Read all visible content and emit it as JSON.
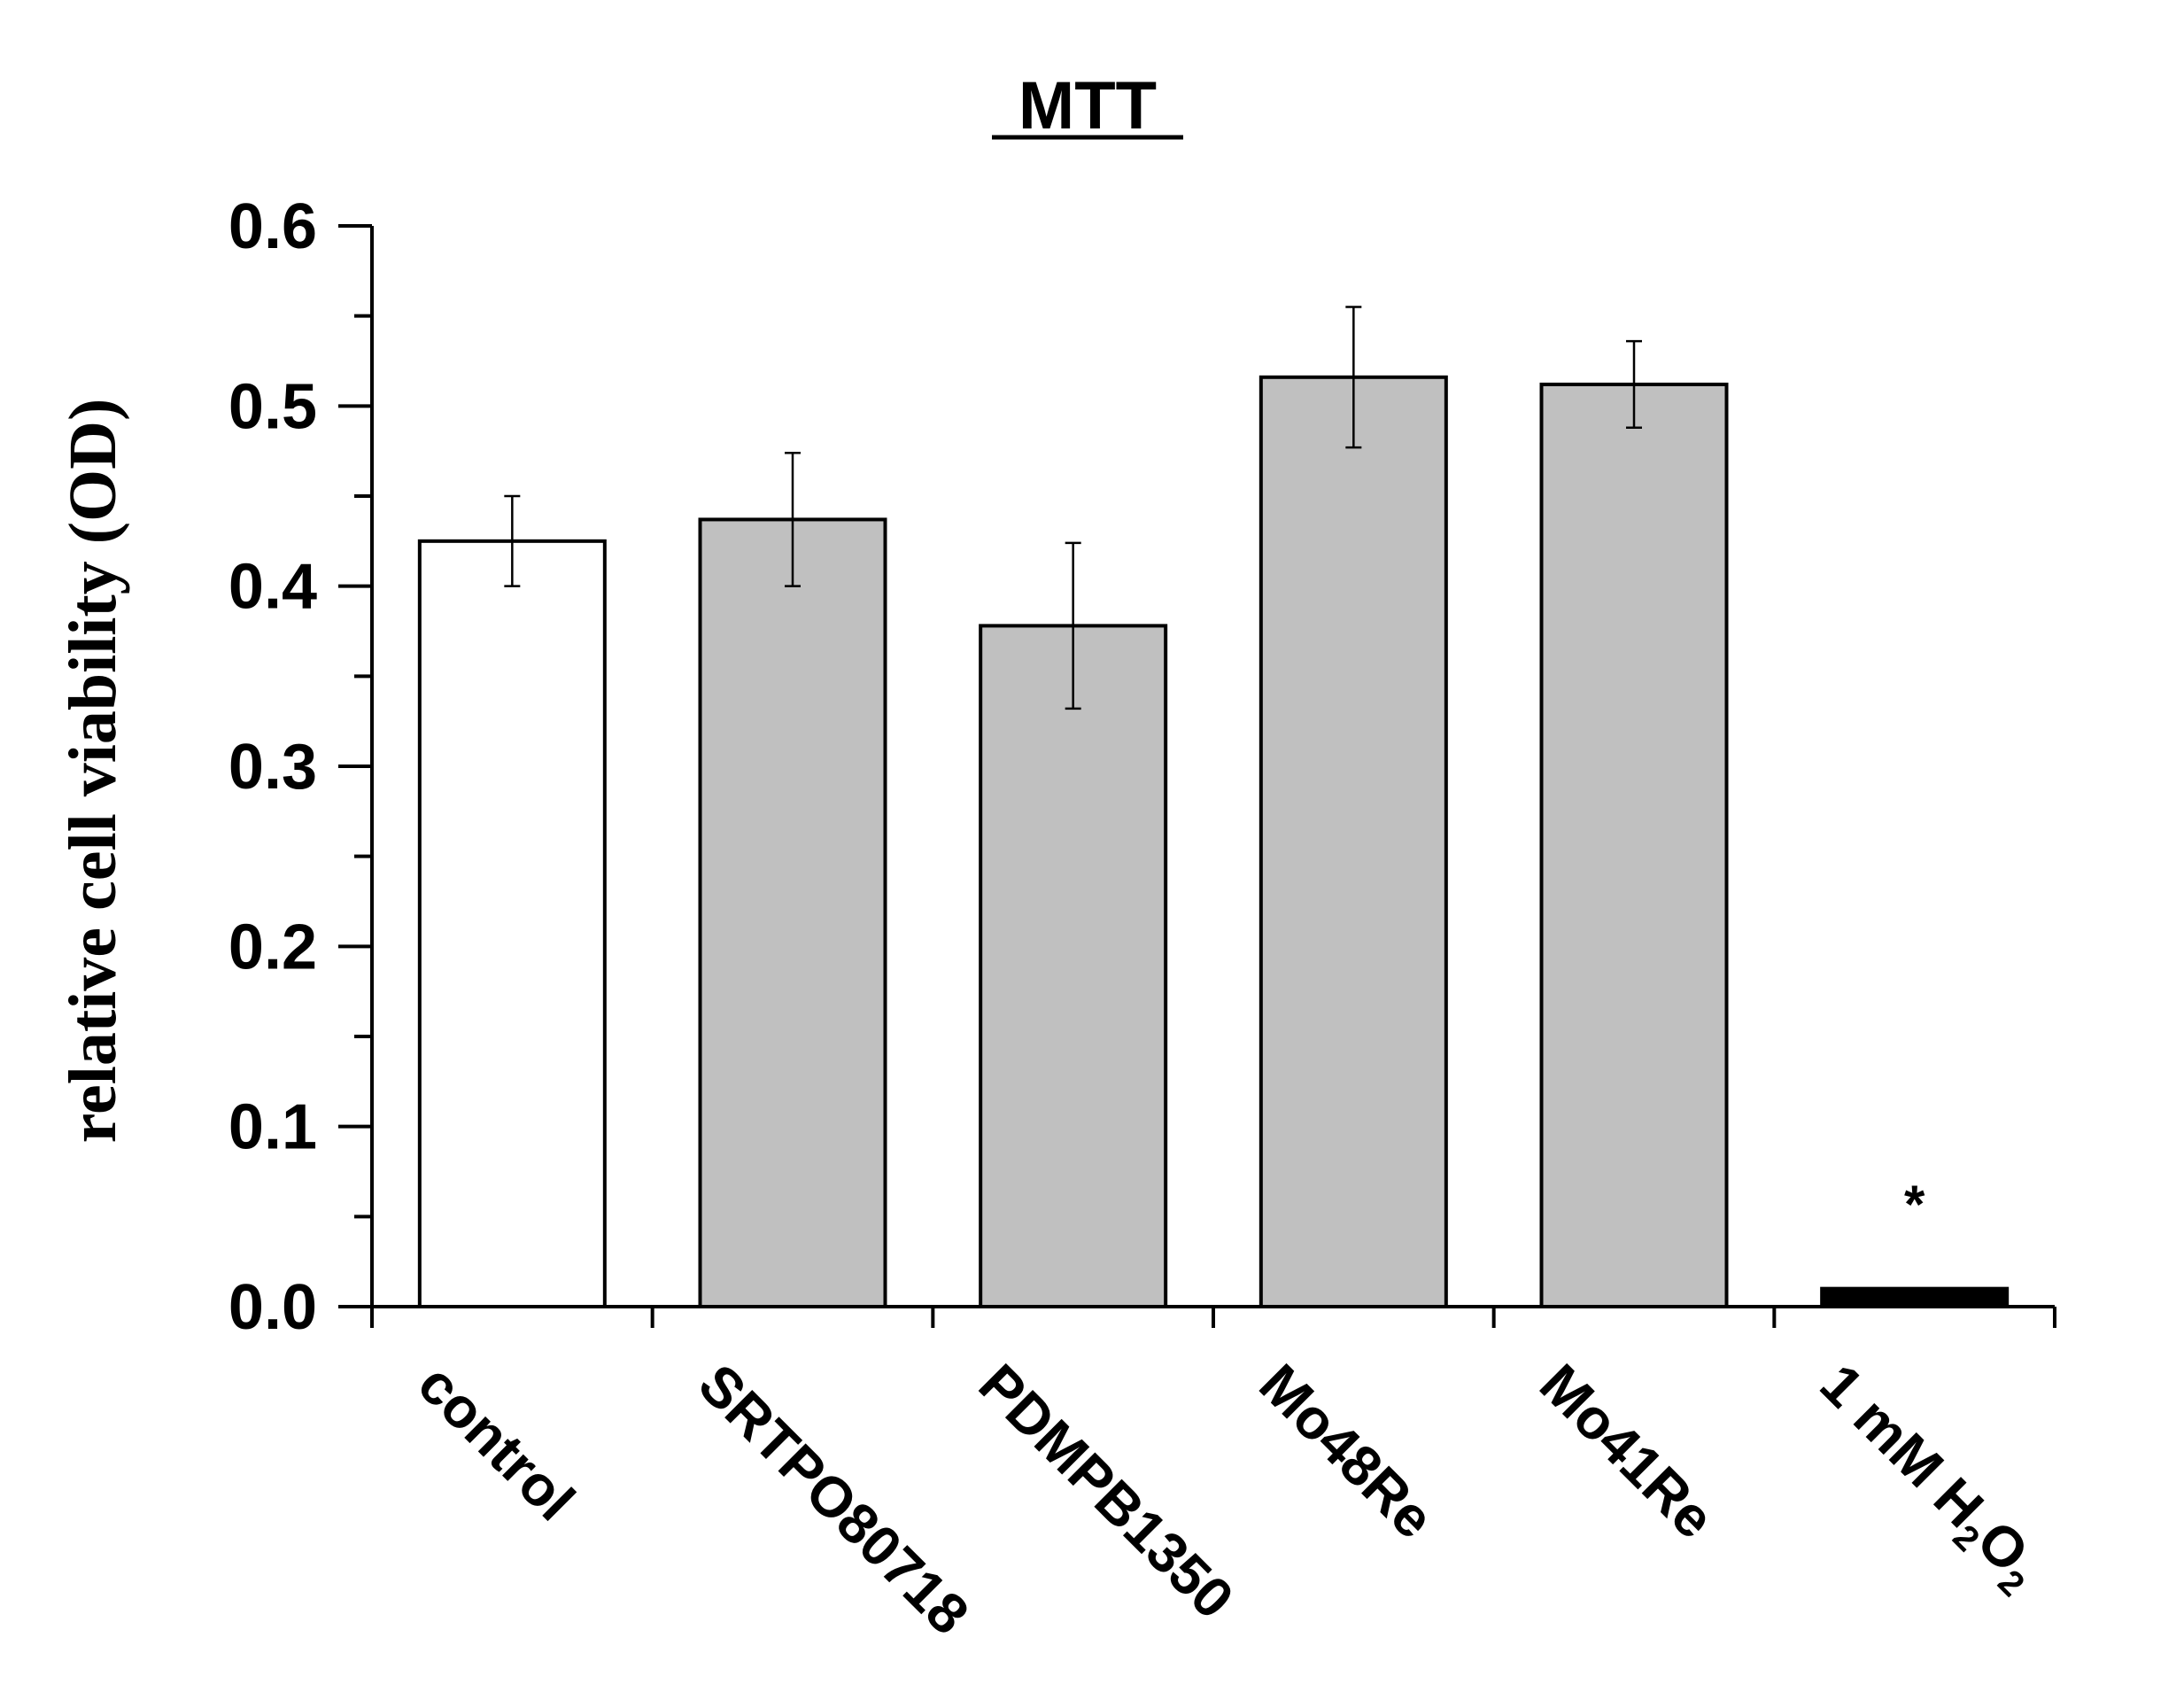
{
  "chart_data": {
    "type": "bar",
    "title": "MTT",
    "ylabel": "relative cell viability (OD)",
    "xlabel": "",
    "ylim": [
      0,
      0.6
    ],
    "yticks": [
      "0.0",
      "0.1",
      "0.2",
      "0.3",
      "0.4",
      "0.5",
      "0.6"
    ],
    "categories": [
      {
        "label": "control"
      },
      {
        "label": "SRTPO80718"
      },
      {
        "label": "PDMPB1350"
      },
      {
        "label": "Mo48Re"
      },
      {
        "label": "Mo41Re"
      },
      {
        "label": "1 mM H",
        "sub1": "2",
        "mid": "O",
        "sub2": "2"
      }
    ],
    "values": [
      0.425,
      0.437,
      0.378,
      0.516,
      0.512,
      0.01
    ],
    "errors": [
      0.025,
      0.037,
      0.046,
      0.039,
      0.024,
      0.0
    ],
    "colors": [
      "#ffffff",
      "#c0c0c0",
      "#c0c0c0",
      "#c0c0c0",
      "#c0c0c0",
      "#000000"
    ],
    "annotations": [
      {
        "category_index": 5,
        "text": "*"
      }
    ],
    "grid": false,
    "legend": "none"
  }
}
